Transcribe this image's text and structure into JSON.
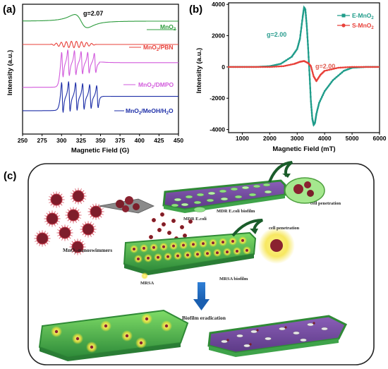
{
  "chart_data": [
    {
      "panel": "(a)",
      "type": "line",
      "xlabel": "Magnetic Field (G)",
      "ylabel": "Intensity (a.u.)",
      "xlim": [
        250,
        450
      ],
      "xticks": [
        250,
        275,
        300,
        325,
        350,
        375,
        400,
        425,
        450
      ],
      "annotation": "g=2.07",
      "series": [
        {
          "name": "MnO2",
          "color": "#2e9c3e",
          "offset": 0.87,
          "shape": "broad_derivative",
          "center": 325,
          "width": 14,
          "amp": 0.06
        },
        {
          "name": "MnO2/PBN",
          "color": "#e8413a",
          "offset": 0.69,
          "shape": "oscillation",
          "range": [
            285,
            345
          ],
          "period": 6.5,
          "amp": 0.025
        },
        {
          "name": "MnO2/DMPO",
          "color": "#d25bdc",
          "offset": 0.36,
          "shape": "sextet",
          "lines": [
            301,
            309,
            317.5,
            326,
            334.5,
            343
          ],
          "amp": 0.14,
          "left_level": 0.36,
          "right_level": 0.55
        },
        {
          "name": "MnO2/MeOH/H2O",
          "color": "#1e2fa8",
          "offset": 0.17,
          "shape": "sextet",
          "lines": [
            301,
            310,
            319,
            328,
            337,
            346
          ],
          "amp": 0.16,
          "left_level": 0.18,
          "right_level": 0.29
        }
      ]
    },
    {
      "panel": "(b)",
      "type": "line",
      "xlabel": "Magnetic Field (mT)",
      "ylabel": "Intensity (a.u.)",
      "xlim": [
        500,
        6000
      ],
      "ylim": [
        -4200,
        4100
      ],
      "xticks": [
        1000,
        2000,
        3000,
        4000,
        5000,
        6000
      ],
      "yticks": [
        -4000,
        -2000,
        0,
        2000,
        4000
      ],
      "legend_position": "top-right",
      "annotations": [
        {
          "text": "g=2.00",
          "color": "#2a9d8f"
        },
        {
          "text": "g=2.00",
          "color": "#e05a4e"
        }
      ],
      "series": [
        {
          "name": "E-MnO2",
          "color": "#1f9c8a",
          "x": [
            500,
            1000,
            1500,
            2000,
            2400,
            2800,
            3000,
            3100,
            3200,
            3250,
            3300,
            3350,
            3400,
            3450,
            3500,
            3550,
            3600,
            3650,
            3700,
            3800,
            4000,
            4300,
            4700,
            5000,
            5500,
            6000
          ],
          "y": [
            0,
            0,
            0,
            50,
            200,
            650,
            1150,
            1800,
            3200,
            3800,
            3650,
            2600,
            1200,
            -500,
            -2200,
            -3300,
            -3700,
            -3550,
            -3000,
            -2300,
            -1550,
            -850,
            -250,
            -50,
            0,
            0
          ]
        },
        {
          "name": "S-MnO2",
          "color": "#e8413a",
          "x": [
            500,
            1000,
            1500,
            2000,
            2500,
            2900,
            3100,
            3250,
            3400,
            3500,
            3600,
            3700,
            3850,
            4000,
            4500,
            5000,
            5500,
            6000
          ],
          "y": [
            0,
            0,
            0,
            0,
            50,
            200,
            330,
            380,
            250,
            50,
            -600,
            -900,
            -500,
            -250,
            -50,
            0,
            0,
            0
          ]
        }
      ]
    }
  ],
  "panel_labels": {
    "a": "(a)",
    "b": "(b)",
    "c": "(c)"
  },
  "legend_b": {
    "e": "E-MnO",
    "e_sub": "2",
    "s": "S-MnO",
    "s_sub": "2"
  },
  "labels_a": {
    "mno2": "MnO",
    "mno2_sub": "2",
    "pbn": "MnO",
    "pbn_sub": "2",
    "pbn_tail": "/PBN",
    "dmpo": "MnO",
    "dmpo_sub": "2",
    "dmpo_tail": "/DMPO",
    "meoh": "MnO",
    "meoh_sub": "2",
    "meoh_tail": "/MeOH/H",
    "meoh_sub2": "2",
    "meoh_tail2": "O"
  },
  "illustration": {
    "nanoswimmers": "MnO₂-nanoswimmers",
    "mdr_ecoli": "MDR E.coli",
    "mdr_ecoli_biofilm": "MDR E.coli biofilm",
    "mrsa": "MRSA",
    "mrsa_biofilm": "MRSA biofilm",
    "cell_penetration_top": "cell penetration",
    "cell_penetration_mid": "cell penetration",
    "biofilm_eradication": "Biofilm eradication"
  }
}
